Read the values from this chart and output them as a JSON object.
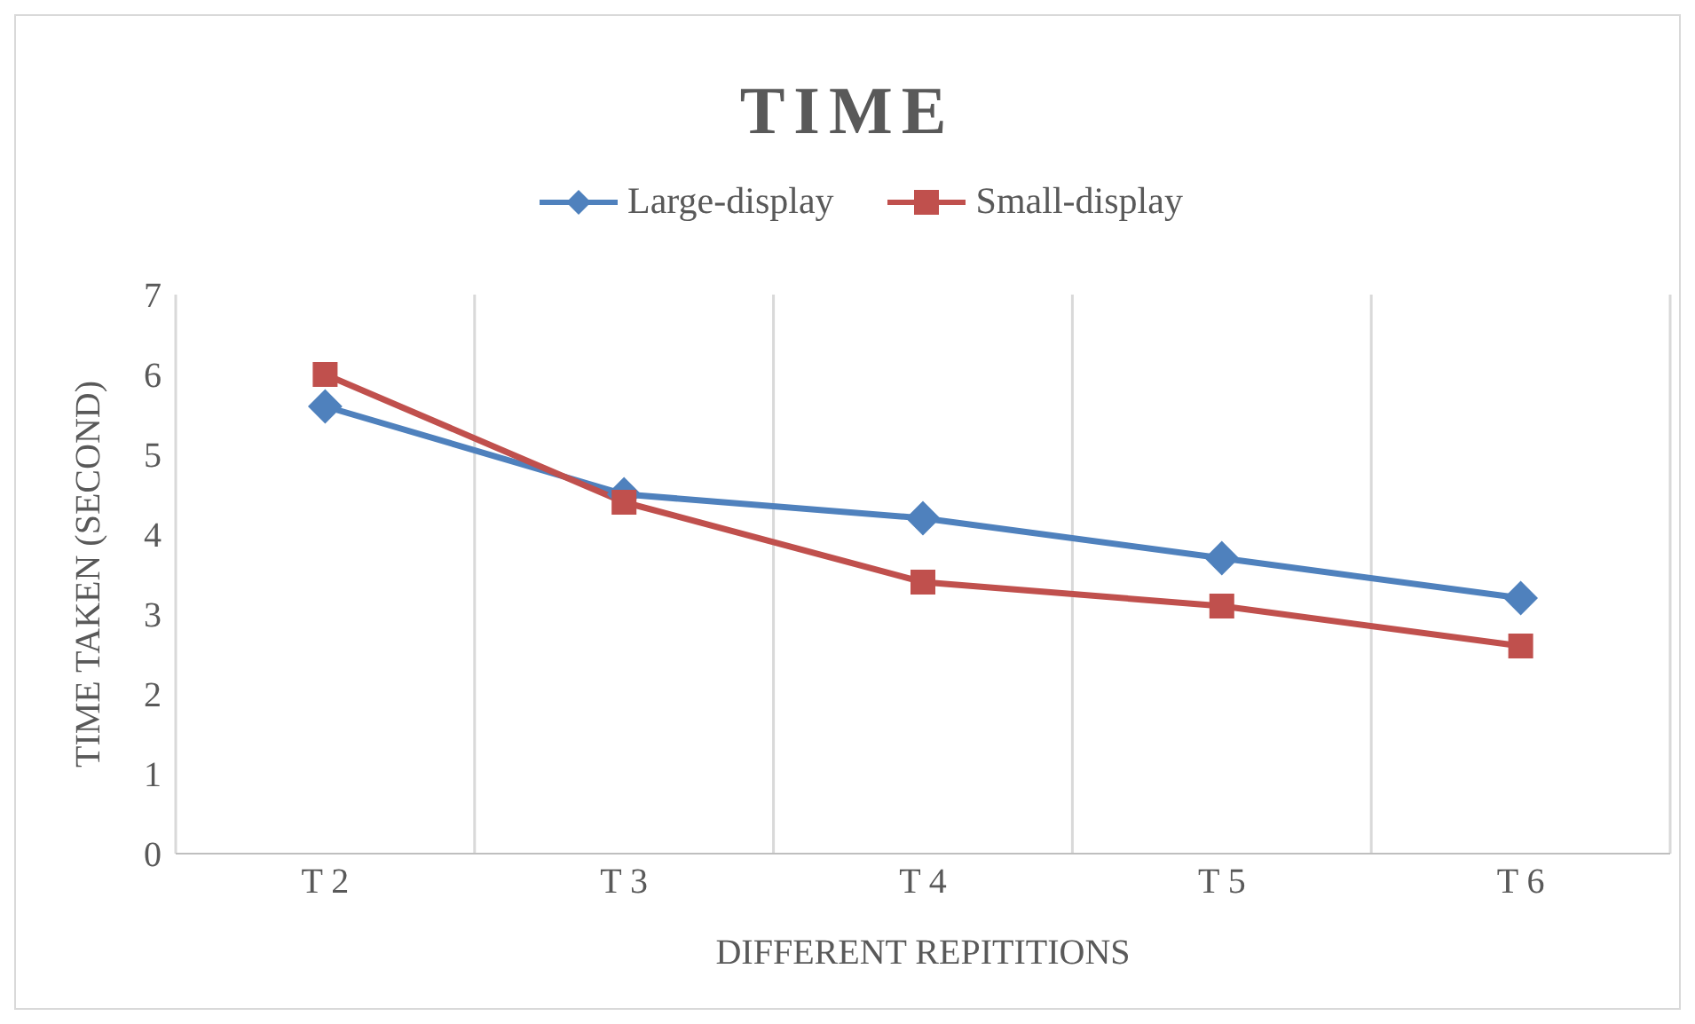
{
  "chart_data": {
    "type": "line",
    "title": "TIME",
    "xlabel": "DIFFERENT REPITITIONS",
    "ylabel": "TIME TAKEN (SECOND)",
    "categories": [
      "T 2",
      "T 3",
      "T 4",
      "T 5",
      "T 6"
    ],
    "series": [
      {
        "name": "Large-display",
        "color": "#4f81bd",
        "values": [
          5.6,
          4.5,
          4.2,
          3.7,
          3.2
        ],
        "marker": "diamond"
      },
      {
        "name": "Small-display",
        "color": "#c0504d",
        "values": [
          6.0,
          4.4,
          3.4,
          3.1,
          2.6
        ],
        "marker": "square"
      }
    ],
    "ylim": [
      0,
      7
    ],
    "yticks": [
      0,
      1,
      2,
      3,
      4,
      5,
      6,
      7
    ],
    "grid": "x",
    "legend": "top"
  }
}
